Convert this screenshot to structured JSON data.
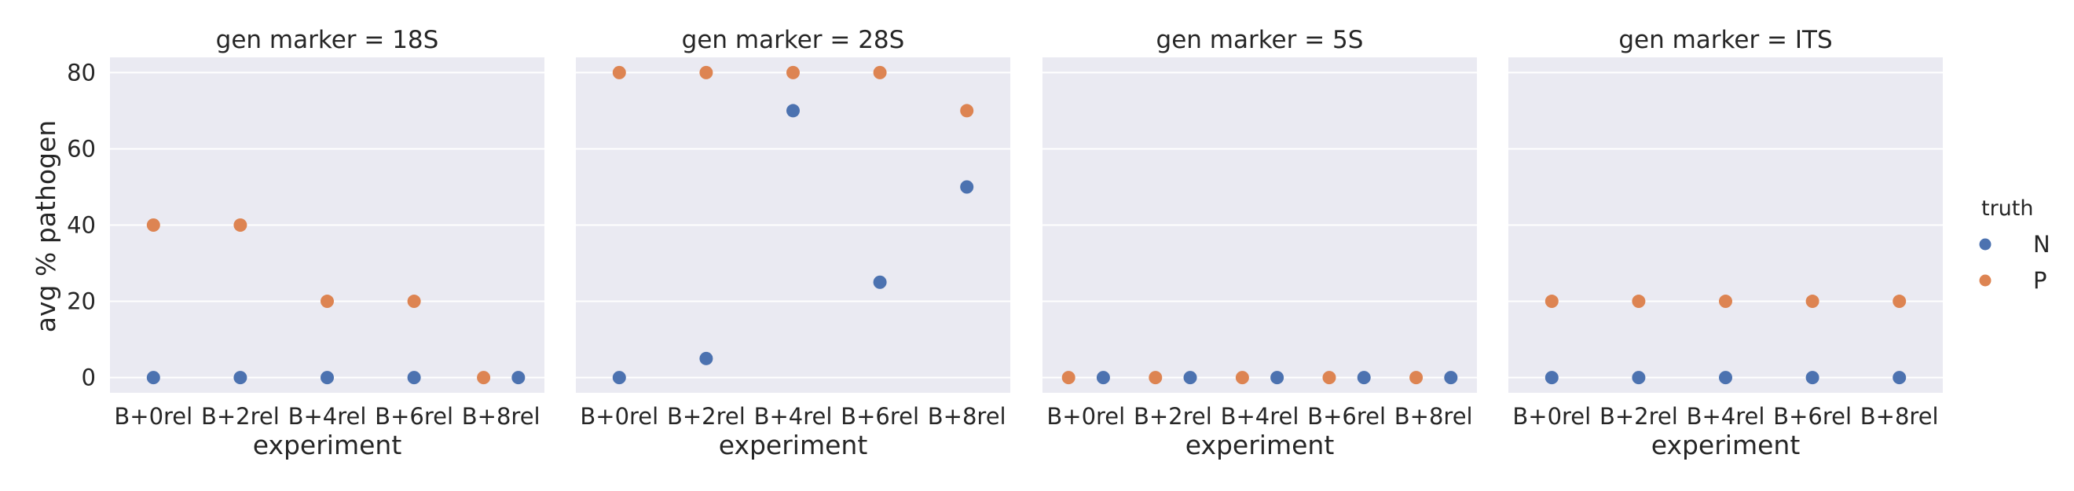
{
  "chart_data": {
    "type": "scatter",
    "facet_label_prefix": "gen marker = ",
    "facets": [
      "18S",
      "28S",
      "5S",
      "ITS"
    ],
    "categories": [
      "B+0rel",
      "B+2rel",
      "B+4rel",
      "B+6rel",
      "B+8rel"
    ],
    "xlabel": "experiment",
    "ylabel": "avg % pathogen",
    "ylim": [
      -4,
      84
    ],
    "yticks": [
      0,
      20,
      40,
      60,
      80
    ],
    "grid": true,
    "legend": {
      "title": "truth",
      "placement": "right",
      "entries": [
        {
          "name": "N",
          "color": "#4c72b0"
        },
        {
          "name": "P",
          "color": "#dd8452"
        }
      ]
    },
    "series": [
      {
        "name": "N",
        "color": "#4c72b0",
        "values": {
          "18S": [
            0,
            0,
            0,
            0,
            0
          ],
          "28S": [
            0,
            5,
            70,
            25,
            50
          ],
          "5S": [
            0,
            0,
            0,
            0,
            0
          ],
          "ITS": [
            0,
            0,
            0,
            0,
            0
          ]
        }
      },
      {
        "name": "P",
        "color": "#dd8452",
        "values": {
          "18S": [
            40,
            40,
            20,
            20,
            0
          ],
          "28S": [
            80,
            80,
            80,
            80,
            70
          ],
          "5S": [
            0,
            0,
            0,
            0,
            0
          ],
          "ITS": [
            20,
            20,
            20,
            20,
            20
          ]
        }
      }
    ]
  }
}
